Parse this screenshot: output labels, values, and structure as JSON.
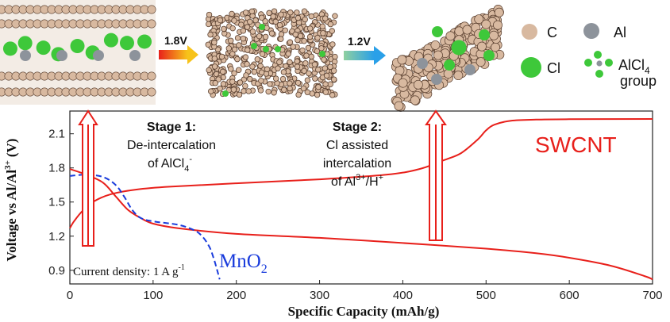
{
  "chart_data": {
    "type": "line",
    "title": "",
    "xlabel": "Specific Capacity (mAh/g)",
    "ylabel": "Voltage vs Al/Al",
    "ylabel_sup": "3+",
    "ylabel_unit": "(V)",
    "xlim": [
      0,
      700
    ],
    "ylim": [
      0.78,
      2.3
    ],
    "x_ticks": [
      "0",
      "100",
      "200",
      "300",
      "400",
      "500",
      "600",
      "700"
    ],
    "y_ticks": [
      "0.9",
      "1.2",
      "1.5",
      "1.8",
      "2.1"
    ],
    "x_tick_values": [
      0,
      100,
      200,
      300,
      400,
      500,
      600,
      700
    ],
    "y_tick_values": [
      0.9,
      1.2,
      1.5,
      1.8,
      2.1
    ],
    "series": [
      {
        "name": "SWCNT",
        "color": "#e8201b",
        "style": "solid",
        "points": [
          [
            0,
            1.79
          ],
          [
            20,
            1.74
          ],
          [
            40,
            1.67
          ],
          [
            55,
            1.55
          ],
          [
            70,
            1.43
          ],
          [
            85,
            1.36
          ],
          [
            100,
            1.31
          ],
          [
            130,
            1.27
          ],
          [
            200,
            1.22
          ],
          [
            300,
            1.185
          ],
          [
            400,
            1.14
          ],
          [
            500,
            1.09
          ],
          [
            560,
            1.05
          ],
          [
            600,
            1.01
          ],
          [
            650,
            0.94
          ],
          [
            690,
            0.85
          ],
          [
            700,
            0.82
          ]
        ]
      },
      {
        "name": "",
        "color": "#e8201b",
        "style": "solid",
        "points": [
          [
            0,
            1.27
          ],
          [
            5,
            1.33
          ],
          [
            15,
            1.42
          ],
          [
            30,
            1.51
          ],
          [
            50,
            1.57
          ],
          [
            80,
            1.61
          ],
          [
            120,
            1.635
          ],
          [
            200,
            1.665
          ],
          [
            300,
            1.7
          ],
          [
            380,
            1.74
          ],
          [
            420,
            1.79
          ],
          [
            450,
            1.87
          ],
          [
            470,
            1.93
          ],
          [
            490,
            2.05
          ],
          [
            500,
            2.13
          ],
          [
            510,
            2.18
          ],
          [
            530,
            2.215
          ],
          [
            560,
            2.225
          ],
          [
            600,
            2.228
          ],
          [
            700,
            2.23
          ]
        ]
      },
      {
        "name": "MnO",
        "name_sub": "2",
        "color": "#1a3cdc",
        "style": "dashed",
        "points": [
          [
            0,
            1.73
          ],
          [
            20,
            1.74
          ],
          [
            40,
            1.72
          ],
          [
            55,
            1.65
          ],
          [
            65,
            1.55
          ],
          [
            75,
            1.43
          ],
          [
            85,
            1.36
          ],
          [
            100,
            1.33
          ],
          [
            130,
            1.3
          ],
          [
            150,
            1.25
          ],
          [
            160,
            1.19
          ],
          [
            168,
            1.1
          ],
          [
            173,
            1.0
          ],
          [
            177,
            0.9
          ],
          [
            180,
            0.82
          ]
        ]
      }
    ],
    "annotations": {
      "current_density": "Current density: 1 A g",
      "current_density_sup": "-1",
      "stage1_title": "Stage 1:",
      "stage1_line1": "De-intercalation",
      "stage1_line2": "of AlCl",
      "stage1_line2_sub": "4",
      "stage1_line2_sup": "-",
      "stage2_title": "Stage 2:",
      "stage2_line1": "Cl assisted",
      "stage2_line2": "intercalation",
      "stage2_line3a": "of Al",
      "stage2_line3_sup1": "3+",
      "stage2_line3b": "/H",
      "stage2_line3_sup2": "+"
    }
  },
  "top_panel": {
    "voltage_1": "1.8V",
    "voltage_2": "1.2V",
    "legend": {
      "c_label": "C",
      "al_label": "Al",
      "cl_label": "Cl",
      "alcl4_label": "AlCl",
      "alcl4_sub": "4",
      "alcl4_group": "group"
    },
    "colors": {
      "carbon": "#d8b9a0",
      "carbon_dark": "#5a4030",
      "chlorine": "#3ec83a",
      "aluminum": "#8d939b"
    }
  }
}
